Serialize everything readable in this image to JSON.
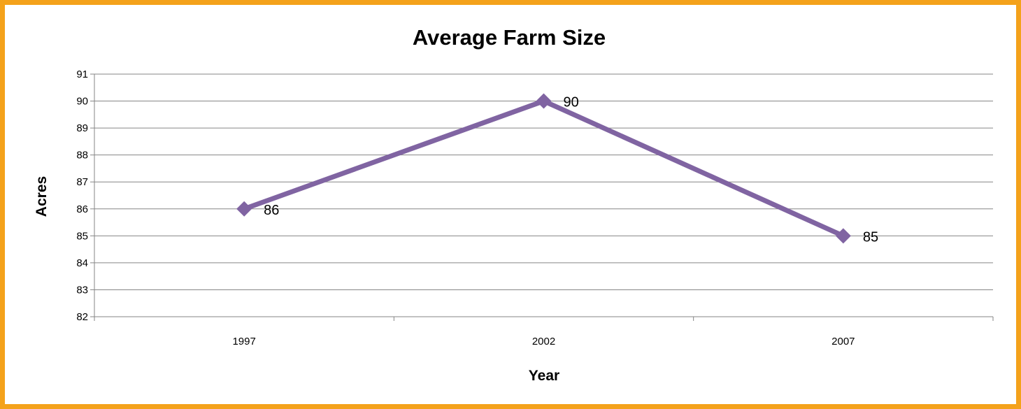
{
  "chart_data": {
    "type": "line",
    "title": "Average Farm Size",
    "xlabel": "Year",
    "ylabel": "Acres",
    "categories": [
      "1997",
      "2002",
      "2007"
    ],
    "series": [
      {
        "values": [
          86,
          90,
          85
        ],
        "data_labels": [
          "86",
          "90",
          "85"
        ]
      }
    ],
    "ylim": [
      82,
      91
    ],
    "y_ticks": [
      "82",
      "83",
      "84",
      "85",
      "86",
      "87",
      "88",
      "89",
      "90",
      "91"
    ],
    "grid": true,
    "legend": "none",
    "line_color": "#8064a2",
    "frame_color": "#f4a21b",
    "gridline_color": "#868686",
    "marker": "diamond"
  }
}
